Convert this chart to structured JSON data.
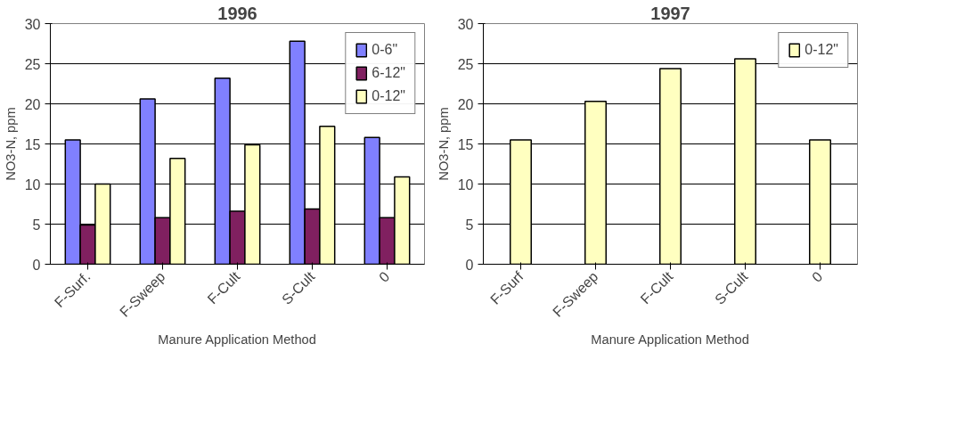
{
  "chart_data": [
    {
      "type": "bar",
      "title": "1996",
      "xlabel": "Manure Application Method",
      "ylabel": "NO3-N, ppm",
      "categories": [
        "F-Surf.",
        "F-Sweep",
        "F-Cult",
        "S-Cult",
        "0"
      ],
      "ylim": [
        0,
        30
      ],
      "yticks": [
        0,
        5,
        10,
        15,
        20,
        25,
        30
      ],
      "grid": "y",
      "legend": "right",
      "series": [
        {
          "name": "0-6\"",
          "color": "#8080ff",
          "values": [
            15.5,
            20.6,
            23.2,
            27.8,
            15.8
          ]
        },
        {
          "name": "6-12\"",
          "color": "#802060",
          "values": [
            4.9,
            5.8,
            6.6,
            6.9,
            5.8
          ]
        },
        {
          "name": "0-12\"",
          "color": "#ffffc0",
          "values": [
            10.0,
            13.2,
            14.9,
            17.2,
            10.9
          ]
        }
      ]
    },
    {
      "type": "bar",
      "title": "1997",
      "xlabel": "Manure Application Method",
      "ylabel": "NO3-N, ppm",
      "categories": [
        "F-Surf",
        "F-Sweep",
        "F-Cult",
        "S-Cult",
        "0"
      ],
      "ylim": [
        0,
        30
      ],
      "yticks": [
        0,
        5,
        10,
        15,
        20,
        25,
        30
      ],
      "grid": "y",
      "legend": "right",
      "series": [
        {
          "name": "0-12\"",
          "color": "#ffffc0",
          "values": [
            15.5,
            20.3,
            24.4,
            25.6,
            15.5
          ]
        }
      ]
    }
  ]
}
